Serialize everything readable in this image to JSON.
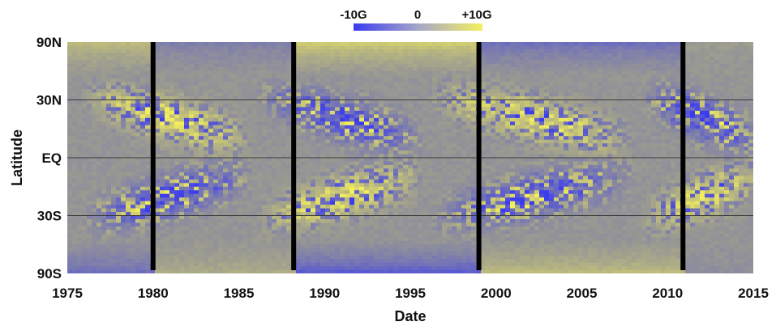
{
  "chart_data": {
    "type": "heatmap",
    "xlabel": "Date",
    "ylabel": "Latitude",
    "xlim": [
      1975,
      2015
    ],
    "x_ticks": [
      "1975",
      "1980",
      "1985",
      "1990",
      "1995",
      "2000",
      "2005",
      "2010",
      "2015"
    ],
    "y_ticks": [
      "90N",
      "30N",
      "EQ",
      "30S",
      "90S"
    ],
    "colorbar": {
      "labels": [
        "-10G",
        "0",
        "+10G"
      ],
      "range": [
        -10,
        10
      ],
      "colors": [
        "#3b3bf0",
        "#9a9a9a",
        "#f4f060"
      ]
    },
    "cycle_boundaries": [
      1980.0,
      1988.2,
      1999.0,
      2010.9
    ],
    "grid": "horizontal lines at 30N, EQ, 30S",
    "colors": {
      "negative": "#3b3bf0",
      "neutral": "#959595",
      "positive": "#f2ee5c",
      "boundary": "#000000"
    }
  }
}
